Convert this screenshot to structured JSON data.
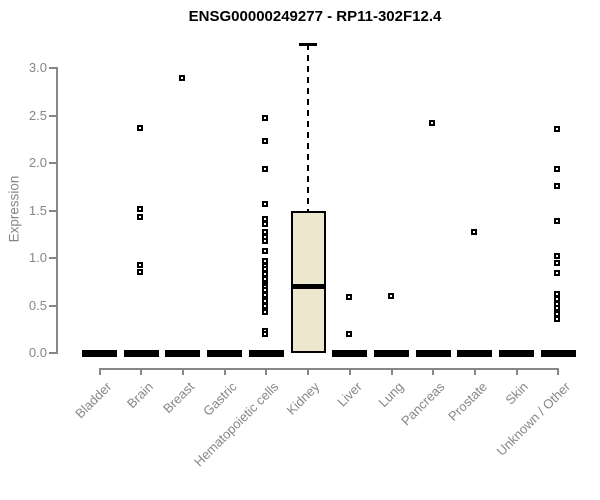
{
  "chart_data": {
    "type": "boxplot",
    "title": "ENSG00000249277 - RP11-302F12.4",
    "ylabel": "Expression",
    "xlabel": "",
    "ylim": [
      0,
      3.3
    ],
    "yticks": [
      "0.0",
      "0.5",
      "1.0",
      "1.5",
      "2.0",
      "2.5",
      "3.0"
    ],
    "ytick_values": [
      0.0,
      0.5,
      1.0,
      1.5,
      2.0,
      2.5,
      3.0
    ],
    "grid": false,
    "legend_position": "none",
    "categories": [
      "Bladder",
      "Brain",
      "Breast",
      "Gastric",
      "Hematopoietic cells",
      "Kidney",
      "Liver",
      "Lung",
      "Pancreas",
      "Prostate",
      "Skin",
      "Unknown / Other"
    ],
    "series": [
      {
        "category": "Bladder",
        "q1": 0,
        "median": 0,
        "q3": 0,
        "whisker_low": 0,
        "whisker_high": 0,
        "outliers": []
      },
      {
        "category": "Brain",
        "q1": 0,
        "median": 0,
        "q3": 0,
        "whisker_low": 0,
        "whisker_high": 0,
        "outliers": [
          2.37,
          1.52,
          1.43,
          0.93,
          0.85
        ]
      },
      {
        "category": "Breast",
        "q1": 0,
        "median": 0,
        "q3": 0,
        "whisker_low": 0,
        "whisker_high": 0,
        "outliers": [
          2.89
        ]
      },
      {
        "category": "Gastric",
        "q1": 0,
        "median": 0,
        "q3": 0,
        "whisker_low": 0,
        "whisker_high": 0,
        "outliers": []
      },
      {
        "category": "Hematopoietic cells",
        "q1": 0,
        "median": 0,
        "q3": 0,
        "whisker_low": 0,
        "whisker_high": 0,
        "outliers": [
          2.47,
          2.23,
          1.94,
          1.57,
          1.41,
          1.36,
          1.27,
          1.22,
          1.18,
          1.07,
          0.97,
          0.92,
          0.88,
          0.83,
          0.78,
          0.72,
          0.69,
          0.66,
          0.61,
          0.55,
          0.49,
          0.43,
          0.23,
          0.2
        ]
      },
      {
        "category": "Kidney",
        "q1": 0,
        "median": 0.7,
        "q3": 1.5,
        "whisker_low": 0,
        "whisker_high": 3.25,
        "outliers": []
      },
      {
        "category": "Liver",
        "q1": 0,
        "median": 0,
        "q3": 0,
        "whisker_low": 0,
        "whisker_high": 0,
        "outliers": [
          0.59,
          0.2
        ]
      },
      {
        "category": "Lung",
        "q1": 0,
        "median": 0,
        "q3": 0,
        "whisker_low": 0,
        "whisker_high": 0,
        "outliers": [
          0.6
        ]
      },
      {
        "category": "Pancreas",
        "q1": 0,
        "median": 0,
        "q3": 0,
        "whisker_low": 0,
        "whisker_high": 0,
        "outliers": [
          2.42
        ]
      },
      {
        "category": "Prostate",
        "q1": 0,
        "median": 0,
        "q3": 0,
        "whisker_low": 0,
        "whisker_high": 0,
        "outliers": [
          1.27
        ]
      },
      {
        "category": "Skin",
        "q1": 0,
        "median": 0,
        "q3": 0,
        "whisker_low": 0,
        "whisker_high": 0,
        "outliers": []
      },
      {
        "category": "Unknown / Other",
        "q1": 0,
        "median": 0,
        "q3": 0,
        "whisker_low": 0,
        "whisker_high": 0,
        "outliers": [
          2.36,
          1.94,
          1.76,
          1.39,
          1.02,
          0.95,
          0.84,
          0.62,
          0.57,
          0.52,
          0.47,
          0.41,
          0.36
        ]
      }
    ],
    "colors": {
      "box_fill": "#EDE8CD",
      "box_border": "#000000",
      "median": "#000000",
      "points": "#000000",
      "axis": "#878787",
      "title": "#000000"
    }
  }
}
